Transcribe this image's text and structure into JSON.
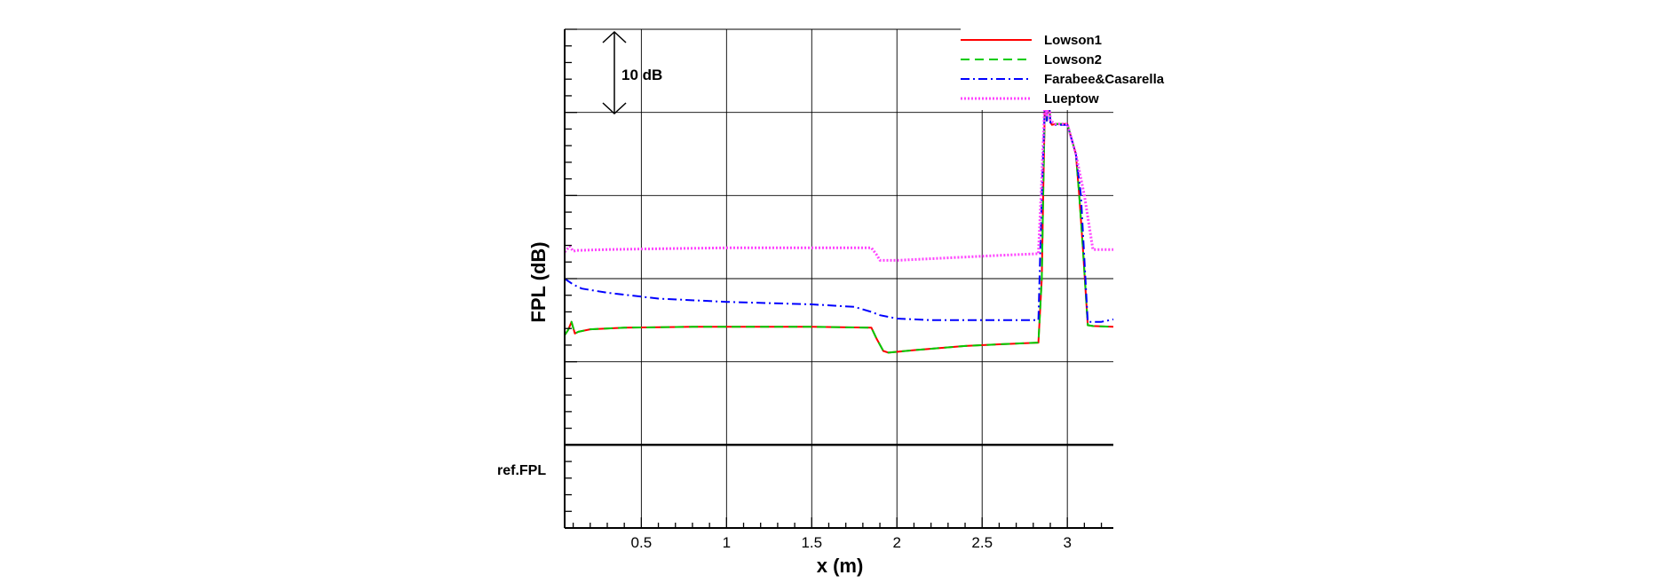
{
  "chart_data": {
    "type": "line",
    "xlabel": "x (m)",
    "ylabel": "FPL (dB)",
    "xlim": [
      0.05,
      3.27
    ],
    "ylim": [
      -10,
      50
    ],
    "x_ticks": [
      0.5,
      1,
      1.5,
      2,
      2.5,
      3
    ],
    "x_tick_labels": [
      "0.5",
      "1",
      "1.5",
      "2",
      "2.5",
      "3"
    ],
    "y_major_gridlines": [
      0,
      10,
      20,
      30,
      40,
      50
    ],
    "reference_label": "ref.FPL",
    "scale_annotation": "10 dB",
    "grid": true,
    "legend_position": "top-right",
    "series": [
      {
        "name": "Lowson1",
        "color": "#ff0000",
        "style": "solid",
        "x": [
          0.05,
          0.07,
          0.09,
          0.11,
          0.13,
          0.2,
          0.4,
          0.8,
          1.2,
          1.5,
          1.85,
          1.88,
          1.92,
          1.95,
          2.1,
          2.4,
          2.6,
          2.83,
          2.85,
          2.86,
          2.87,
          2.88,
          2.89,
          2.9,
          2.91,
          2.93,
          3.0,
          3.05,
          3.07,
          3.09,
          3.12,
          3.15,
          3.27
        ],
        "y": [
          13.2,
          13.8,
          14.8,
          13.4,
          13.6,
          13.9,
          14.1,
          14.2,
          14.2,
          14.2,
          14.1,
          12.8,
          11.3,
          11.1,
          11.4,
          11.9,
          12.1,
          12.3,
          20.0,
          32.0,
          42.5,
          39.0,
          42.5,
          38.8,
          38.5,
          38.6,
          38.6,
          35.0,
          30.0,
          24.0,
          14.4,
          14.3,
          14.2
        ]
      },
      {
        "name": "Lowson2",
        "color": "#00cc00",
        "style": "dashed",
        "x": [
          0.05,
          0.07,
          0.09,
          0.11,
          0.13,
          0.2,
          0.4,
          0.8,
          1.2,
          1.5,
          1.85,
          1.88,
          1.92,
          1.95,
          2.1,
          2.4,
          2.6,
          2.83,
          2.85,
          2.86,
          2.87,
          2.88,
          2.89,
          2.9,
          2.91,
          2.93,
          3.0,
          3.05,
          3.07,
          3.09,
          3.12,
          3.15,
          3.27
        ],
        "y": [
          13.2,
          13.8,
          14.8,
          13.4,
          13.6,
          13.9,
          14.1,
          14.2,
          14.2,
          14.2,
          14.1,
          12.8,
          11.3,
          11.1,
          11.4,
          11.9,
          12.1,
          12.3,
          20.0,
          32.0,
          42.5,
          39.0,
          42.5,
          38.8,
          38.5,
          38.6,
          38.6,
          35.0,
          30.0,
          24.0,
          14.4,
          14.3,
          14.2
        ]
      },
      {
        "name": "Farabee&Casarella",
        "color": "#0000ff",
        "style": "dashdot",
        "x": [
          0.05,
          0.1,
          0.15,
          0.3,
          0.6,
          1.0,
          1.5,
          1.75,
          1.85,
          1.9,
          2.0,
          2.2,
          2.5,
          2.75,
          2.83,
          2.85,
          2.87,
          2.88,
          2.89,
          2.9,
          2.93,
          3.0,
          3.05,
          3.08,
          3.12,
          3.2,
          3.27
        ],
        "y": [
          20.0,
          19.3,
          18.8,
          18.3,
          17.6,
          17.2,
          16.9,
          16.6,
          16.0,
          15.6,
          15.2,
          15.0,
          15.0,
          15.0,
          15.0,
          30.0,
          42.0,
          39.0,
          42.5,
          38.8,
          38.5,
          38.5,
          35.0,
          30.0,
          14.8,
          14.8,
          15.1
        ]
      },
      {
        "name": "Lueptow",
        "color": "#ff44ff",
        "style": "dotted",
        "x": [
          0.05,
          0.08,
          0.1,
          0.12,
          0.3,
          0.6,
          1.0,
          1.5,
          1.85,
          1.88,
          1.9,
          2.0,
          2.3,
          2.6,
          2.83,
          2.85,
          2.87,
          2.88,
          2.89,
          2.9,
          2.93,
          3.0,
          3.05,
          3.1,
          3.15,
          3.27
        ],
        "y": [
          23.2,
          23.9,
          23.3,
          23.4,
          23.5,
          23.6,
          23.7,
          23.7,
          23.7,
          22.9,
          22.2,
          22.2,
          22.5,
          22.8,
          23.0,
          32.0,
          42.5,
          39.5,
          43.5,
          39.0,
          38.6,
          38.6,
          35.0,
          30.0,
          23.5,
          23.5
        ]
      }
    ]
  }
}
